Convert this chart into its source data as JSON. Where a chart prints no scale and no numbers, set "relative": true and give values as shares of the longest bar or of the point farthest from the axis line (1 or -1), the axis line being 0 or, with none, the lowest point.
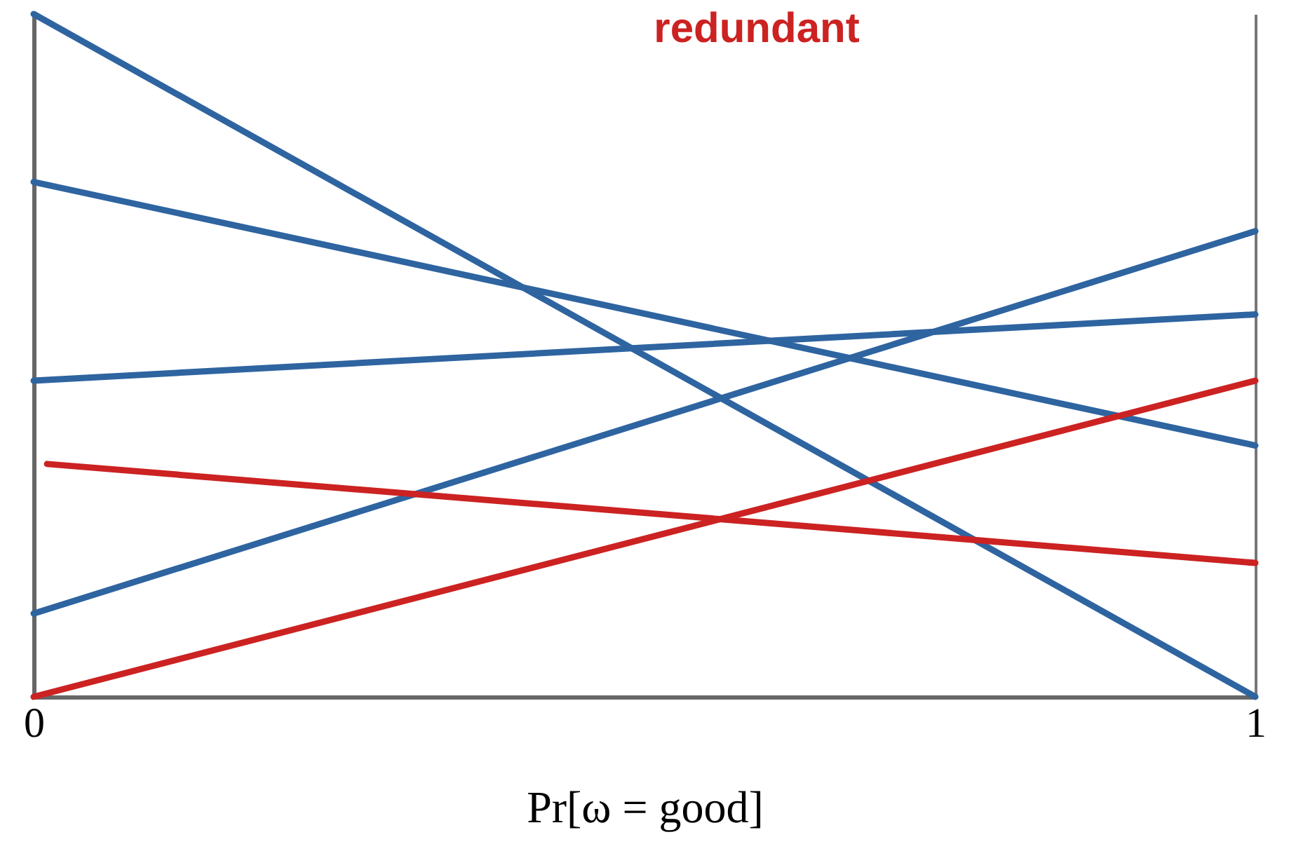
{
  "chart_data": {
    "type": "line",
    "title": "redundant",
    "xlabel": "Pr[ω = good]",
    "relative": true,
    "xlim": [
      0,
      1
    ],
    "xticks": [
      0,
      1
    ],
    "grid": "x",
    "marker": "none",
    "line_style": "solid",
    "series": [
      {
        "color": "#2e64a0",
        "x": [
          0,
          1
        ],
        "values": [
          1,
          0
        ]
      },
      {
        "color": "#2e64a0",
        "x": [
          0,
          1
        ],
        "values": [
          0.754,
          0.368
        ]
      },
      {
        "color": "#2e64a0",
        "x": [
          0,
          1
        ],
        "values": [
          0.463,
          0.56
        ]
      },
      {
        "color": "#2e64a0",
        "x": [
          0,
          1
        ],
        "values": [
          0.122,
          0.682
        ]
      },
      {
        "color": "#cc2222",
        "x": [
          0.011,
          1
        ],
        "values": [
          0.341,
          0.196
        ]
      },
      {
        "color": "#cc2222",
        "x": [
          0,
          1
        ],
        "values": [
          0,
          0.463
        ]
      }
    ]
  }
}
